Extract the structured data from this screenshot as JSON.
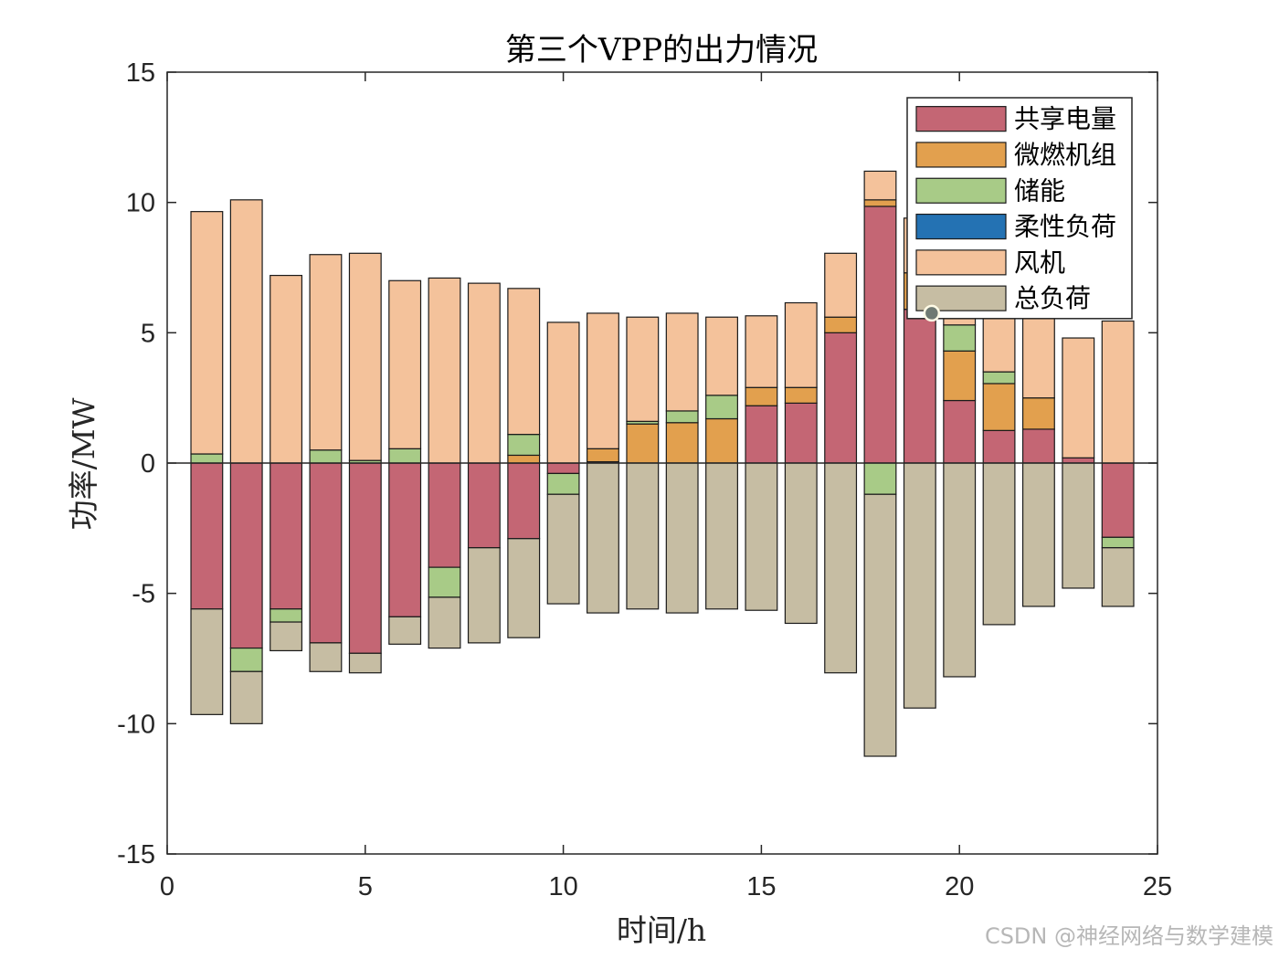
{
  "chart_data": {
    "type": "bar",
    "stacked": true,
    "title": "第三个VPP的出力情况",
    "xlabel": "时间/h",
    "ylabel": "功率/MW",
    "xlim": [
      0,
      25
    ],
    "ylim": [
      -15,
      15
    ],
    "xticks": [
      0,
      5,
      10,
      15,
      20,
      25
    ],
    "yticks": [
      -15,
      -10,
      -5,
      0,
      5,
      10,
      15
    ],
    "grid": false,
    "legend_position": "top-right",
    "x": [
      1,
      2,
      3,
      4,
      5,
      6,
      7,
      8,
      9,
      10,
      11,
      12,
      13,
      14,
      15,
      16,
      17,
      18,
      19,
      20,
      21,
      22,
      23,
      24
    ],
    "series": [
      {
        "name": "共享电量",
        "color": "#c46674",
        "values": [
          -5.6,
          -7.1,
          -5.6,
          -6.9,
          -7.3,
          -5.9,
          -4.0,
          -3.25,
          -2.9,
          -0.4,
          0.05,
          0.0,
          0.0,
          0.0,
          2.2,
          2.3,
          5.0,
          9.85,
          5.9,
          2.4,
          1.25,
          1.3,
          0.2,
          -2.85
        ]
      },
      {
        "name": "微燃机组",
        "color": "#e2a04e",
        "values": [
          0,
          0,
          0,
          0,
          0,
          0,
          0,
          0,
          0.3,
          0,
          0.5,
          1.5,
          1.55,
          1.7,
          0.7,
          0.6,
          0.6,
          0.25,
          1.4,
          1.9,
          1.8,
          1.2,
          0,
          0
        ]
      },
      {
        "name": "储能",
        "color": "#a8cb87",
        "values": [
          0.35,
          -0.9,
          -0.5,
          0.5,
          0.1,
          0.55,
          -1.15,
          0,
          0.8,
          -0.8,
          0,
          0.1,
          0.45,
          0.9,
          0,
          0,
          0,
          -1.2,
          0,
          1.0,
          0.45,
          0,
          0,
          -0.4
        ]
      },
      {
        "name": "柔性负荷",
        "color": "#2472b3",
        "values": [
          0,
          0,
          0,
          0,
          0,
          0,
          0,
          0,
          0,
          0,
          0,
          0,
          0,
          0,
          0,
          0,
          0,
          0,
          0,
          0,
          0,
          0,
          0,
          0
        ]
      },
      {
        "name": "风机",
        "color": "#f4c29b",
        "values": [
          9.3,
          10.1,
          7.2,
          7.5,
          7.95,
          6.45,
          7.1,
          6.9,
          5.6,
          5.4,
          5.2,
          4.0,
          3.75,
          3.0,
          2.75,
          3.25,
          2.45,
          1.1,
          2.1,
          1.1,
          2.05,
          3.1,
          4.6,
          5.45
        ]
      },
      {
        "name": "总负荷",
        "color": "#c6bda3",
        "values": [
          -4.05,
          -2.0,
          -1.1,
          -1.1,
          -0.75,
          -1.05,
          -1.95,
          -3.65,
          -3.8,
          -4.2,
          -5.75,
          -5.6,
          -5.75,
          -5.6,
          -5.65,
          -6.15,
          -8.05,
          -10.05,
          -9.4,
          -8.2,
          -6.2,
          -5.5,
          -4.8,
          -2.25
        ]
      }
    ]
  },
  "watermark": "CSDN @神经网络与数学建模"
}
